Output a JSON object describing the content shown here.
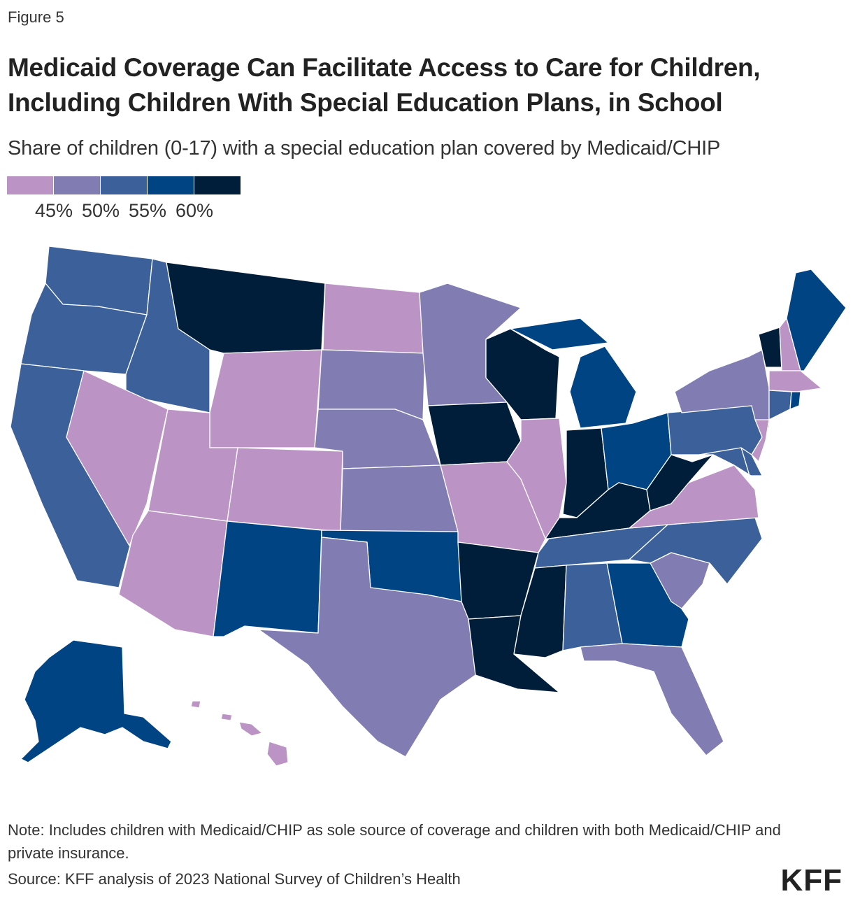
{
  "header": {
    "figure_label": "Figure 5",
    "title": "Medicaid Coverage Can Facilitate Access to Care for Children, Including Children With Special Education Plans, in School",
    "subtitle": "Share of children (0-17) with a special education plan covered by Medicaid/CHIP"
  },
  "legend": {
    "colors": [
      "#bb93c5",
      "#817db3",
      "#3b609a",
      "#004484",
      "#001d3a"
    ],
    "labels": [
      "45%",
      "50%",
      "55%",
      "60%"
    ]
  },
  "footer": {
    "note": "Note: Includes children with Medicaid/CHIP as sole source of coverage and children with both Medicaid/CHIP and private insurance.",
    "source": "Source: KFF analysis of 2023 National Survey of Children’s Health",
    "logo": "KFF"
  },
  "chart_data": {
    "type": "choropleth",
    "title": "Medicaid Coverage Can Facilitate Access to Care for Children, Including Children With Special Education Plans, in School",
    "subtitle": "Share of children (0-17) with a special education plan covered by Medicaid/CHIP",
    "legend_breaks": [
      "45%",
      "50%",
      "55%",
      "60%"
    ],
    "bins": [
      "<45%",
      "45-50%",
      "50-55%",
      "55-60%",
      ">60%"
    ],
    "states": {
      "WA": 2,
      "OR": 2,
      "CA": 2,
      "ID": 2,
      "NV": 0,
      "MT": 4,
      "WY": 0,
      "UT": 0,
      "AZ": 0,
      "CO": 0,
      "NM": 3,
      "ND": 0,
      "SD": 1,
      "NE": 1,
      "KS": 1,
      "OK": 3,
      "TX": 1,
      "MN": 1,
      "IA": 4,
      "MO": 0,
      "AR": 4,
      "LA": 4,
      "WI": 4,
      "IL": 0,
      "MI": 3,
      "IN": 4,
      "OH": 3,
      "KY": 4,
      "TN": 2,
      "MS": 4,
      "AL": 2,
      "GA": 3,
      "FL": 1,
      "SC": 1,
      "NC": 2,
      "VA": 0,
      "WV": 4,
      "PA": 2,
      "NY": 1,
      "VT": 4,
      "NH": 0,
      "ME": 3,
      "MA": 0,
      "RI": 3,
      "CT": 2,
      "NJ": 0,
      "DE": 2,
      "MD": 2,
      "AK": 3,
      "HI": 0
    }
  }
}
